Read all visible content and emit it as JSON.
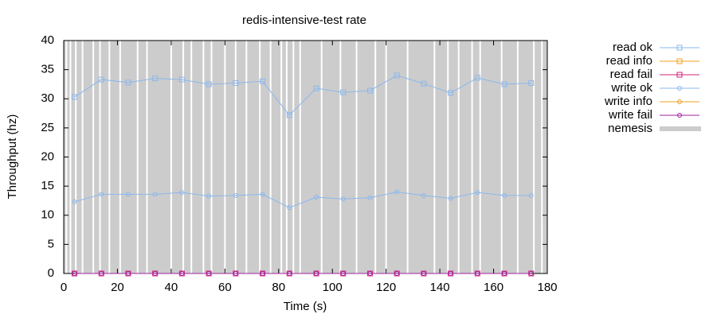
{
  "chart_data": {
    "type": "line",
    "title": "redis-intensive-test rate",
    "x_label": "Time (s)",
    "y_label": "Throughput (hz)",
    "x": [
      4,
      14,
      24,
      34,
      44,
      54,
      64,
      74,
      84,
      94,
      104,
      114,
      124,
      134,
      144,
      154,
      164,
      174
    ],
    "series": [
      {
        "name": "read ok",
        "color": "#8ab8ee",
        "marker": "square",
        "values": [
          30.3,
          33.3,
          32.8,
          33.5,
          33.3,
          32.5,
          32.7,
          33.0,
          27.2,
          31.8,
          31.1,
          31.4,
          34.0,
          32.6,
          31.0,
          33.6,
          32.5,
          32.7
        ]
      },
      {
        "name": "read info",
        "color": "#f0a020",
        "marker": "square",
        "values": [
          null,
          null,
          null,
          null,
          null,
          null,
          null,
          null,
          null,
          null,
          null,
          null,
          null,
          null,
          null,
          null,
          null,
          null
        ]
      },
      {
        "name": "read fail",
        "color": "#d0207a",
        "marker": "square",
        "values": [
          0,
          0,
          0,
          0,
          0,
          0,
          0,
          0,
          0,
          0,
          0,
          0,
          0,
          0,
          0,
          0,
          0,
          0
        ]
      },
      {
        "name": "write ok",
        "color": "#8ab8ee",
        "marker": "circle",
        "values": [
          12.3,
          13.6,
          13.6,
          13.6,
          13.9,
          13.3,
          13.4,
          13.6,
          11.3,
          13.1,
          12.8,
          13.0,
          14.0,
          13.4,
          12.9,
          13.9,
          13.4,
          13.4
        ]
      },
      {
        "name": "write info",
        "color": "#f0a020",
        "marker": "circle",
        "values": [
          null,
          null,
          null,
          null,
          null,
          null,
          null,
          null,
          null,
          null,
          null,
          null,
          null,
          null,
          null,
          null,
          null,
          null
        ]
      },
      {
        "name": "write fail",
        "color": "#a020a0",
        "marker": "circle",
        "values": [
          0,
          0,
          0,
          0,
          0,
          0,
          0,
          0,
          0,
          0,
          0,
          0,
          0,
          0,
          0,
          0,
          0,
          0
        ]
      }
    ],
    "nemesis": {
      "name": "nemesis",
      "color": "#cccccc",
      "gaps": [
        1,
        2.5,
        4.5,
        7,
        11,
        13.5,
        17,
        21,
        27.5,
        31,
        40,
        44.5,
        47.5,
        52,
        55,
        60,
        64,
        68,
        73,
        77,
        81,
        83,
        85.5,
        88,
        96,
        103,
        109,
        116,
        120,
        128,
        138,
        143,
        147,
        152,
        155,
        163,
        169,
        175,
        178
      ]
    },
    "xlim": [
      0,
      180
    ],
    "xticks": [
      0,
      20,
      40,
      60,
      80,
      100,
      120,
      140,
      160,
      180
    ],
    "ylim": [
      0,
      40
    ],
    "yticks": [
      0,
      5,
      10,
      15,
      20,
      25,
      30,
      35,
      40
    ]
  }
}
